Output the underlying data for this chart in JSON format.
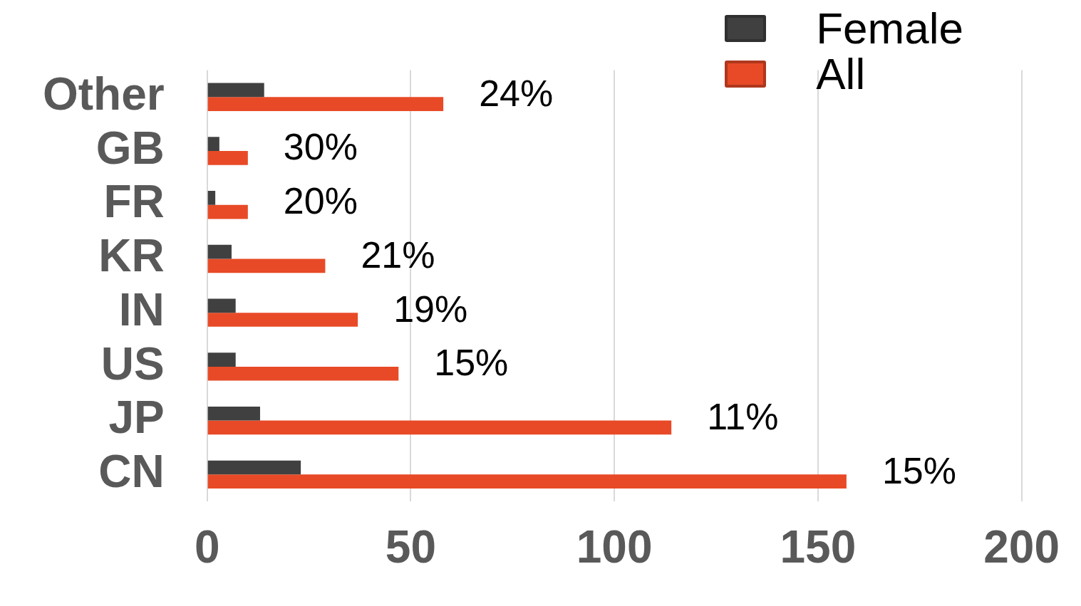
{
  "chart_data": {
    "type": "bar",
    "orientation": "horizontal",
    "categories": [
      "Other",
      "GB",
      "FR",
      "KR",
      "IN",
      "US",
      "JP",
      "CN"
    ],
    "series": [
      {
        "name": "Female",
        "color": "#404040",
        "values": [
          14,
          3,
          2,
          6,
          7,
          7,
          13,
          23
        ]
      },
      {
        "name": "All",
        "color": "#e84a27",
        "values": [
          58,
          10,
          10,
          29,
          37,
          47,
          114,
          157
        ]
      }
    ],
    "annotations": [
      {
        "text": "24%",
        "x": 58,
        "y": "Other"
      },
      {
        "text": "30%",
        "x": 10,
        "y": "GB"
      },
      {
        "text": "20%",
        "x": 10,
        "y": "FR"
      },
      {
        "text": "21%",
        "x": 29,
        "y": "KR"
      },
      {
        "text": "19%",
        "x": 37,
        "y": "IN"
      },
      {
        "text": "15%",
        "x": 47,
        "y": "US"
      },
      {
        "text": "11%",
        "x": 114,
        "y": "JP"
      },
      {
        "text": "15%",
        "x": 157,
        "y": "CN"
      }
    ],
    "xlim": [
      0,
      200
    ],
    "xticks": [
      0,
      50,
      100,
      150,
      200
    ],
    "grid": "x",
    "legend": "top right"
  }
}
